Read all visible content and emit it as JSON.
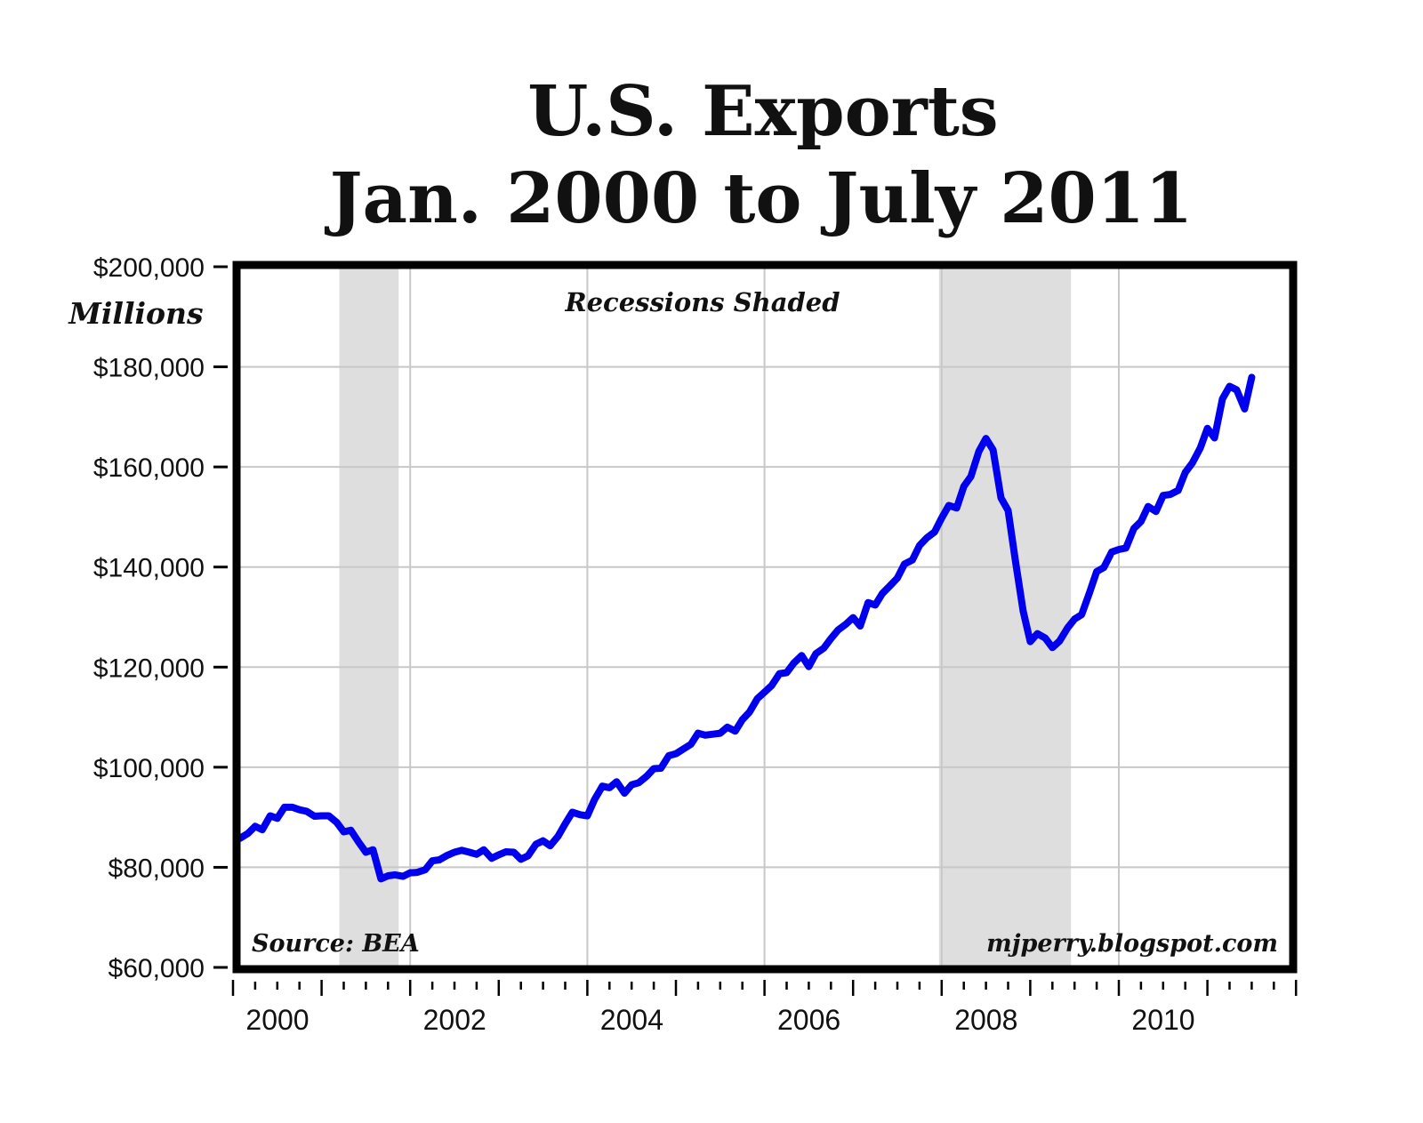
{
  "chart_data": {
    "type": "line",
    "title": "U.S. Exports",
    "subtitle": "Jan. 2000 to July 2011",
    "xlabel": "",
    "ylabel": "Millions",
    "ylim": [
      60000,
      200000
    ],
    "xlim": [
      2000.0,
      2012.0
    ],
    "grid": true,
    "legend": null,
    "y_ticks": [
      60000,
      80000,
      100000,
      120000,
      140000,
      160000,
      180000,
      200000
    ],
    "y_tick_labels": [
      "$60,000",
      "$80,000",
      "$100,000",
      "$120,000",
      "$140,000",
      "$160,000",
      "$180,000",
      "$200,000"
    ],
    "x_tick_labels": [
      "2000",
      "2002",
      "2004",
      "2006",
      "2008",
      "2010"
    ],
    "x_tick_values": [
      2000,
      2002,
      2004,
      2006,
      2008,
      2010
    ],
    "annotations": {
      "top_center": "Recessions Shaded",
      "bottom_left": "Source: BEA",
      "bottom_right": "mjperry.blogspot.com"
    },
    "recessions": [
      {
        "start": 2001.2,
        "end": 2001.87
      },
      {
        "start": 2007.97,
        "end": 2009.46
      }
    ],
    "series": [
      {
        "name": "U.S. Exports",
        "color": "#0000ee",
        "x": [
          2000.08,
          2000.17,
          2000.25,
          2000.33,
          2000.42,
          2000.5,
          2000.58,
          2000.67,
          2000.75,
          2000.83,
          2000.92,
          2001.0,
          2001.08,
          2001.17,
          2001.25,
          2001.33,
          2001.42,
          2001.5,
          2001.58,
          2001.67,
          2001.75,
          2001.83,
          2001.92,
          2002.0,
          2002.08,
          2002.17,
          2002.25,
          2002.33,
          2002.42,
          2002.5,
          2002.58,
          2002.67,
          2002.75,
          2002.83,
          2002.92,
          2003.0,
          2003.08,
          2003.17,
          2003.25,
          2003.33,
          2003.42,
          2003.5,
          2003.58,
          2003.67,
          2003.75,
          2003.83,
          2003.92,
          2004.0,
          2004.08,
          2004.17,
          2004.25,
          2004.33,
          2004.42,
          2004.5,
          2004.58,
          2004.67,
          2004.75,
          2004.83,
          2004.92,
          2005.0,
          2005.08,
          2005.17,
          2005.25,
          2005.33,
          2005.42,
          2005.5,
          2005.58,
          2005.67,
          2005.75,
          2005.83,
          2005.92,
          2006.0,
          2006.08,
          2006.17,
          2006.25,
          2006.33,
          2006.42,
          2006.5,
          2006.58,
          2006.67,
          2006.75,
          2006.83,
          2006.92,
          2007.0,
          2007.08,
          2007.17,
          2007.25,
          2007.33,
          2007.42,
          2007.5,
          2007.58,
          2007.67,
          2007.75,
          2007.83,
          2007.92,
          2008.0,
          2008.08,
          2008.17,
          2008.25,
          2008.33,
          2008.42,
          2008.5,
          2008.58,
          2008.67,
          2008.75,
          2008.83,
          2008.92,
          2009.0,
          2009.08,
          2009.17,
          2009.25,
          2009.33,
          2009.42,
          2009.5,
          2009.58,
          2009.67,
          2009.75,
          2009.83,
          2009.92,
          2010.0,
          2010.08,
          2010.17,
          2010.25,
          2010.33,
          2010.42,
          2010.5,
          2010.58,
          2010.67,
          2010.75,
          2010.83,
          2010.92,
          2011.0,
          2011.08,
          2011.17,
          2011.25,
          2011.33,
          2011.42,
          2011.5
        ],
        "values": [
          85800,
          86800,
          88200,
          87500,
          90300,
          89800,
          92000,
          92000,
          91500,
          91200,
          90200,
          90300,
          90300,
          89000,
          87100,
          87400,
          85000,
          83000,
          83500,
          77700,
          78300,
          78500,
          78200,
          78900,
          79000,
          79500,
          81300,
          81500,
          82400,
          83000,
          83400,
          83000,
          82600,
          83500,
          81800,
          82500,
          83100,
          83000,
          81600,
          82300,
          84600,
          85300,
          84300,
          86200,
          88700,
          91000,
          90500,
          90300,
          93500,
          96200,
          95900,
          97100,
          94800,
          96500,
          96900,
          98200,
          99700,
          99800,
          102300,
          102700,
          103600,
          104600,
          106800,
          106400,
          106600,
          106800,
          108000,
          107200,
          109500,
          111000,
          113700,
          115000,
          116300,
          118700,
          118900,
          120800,
          122300,
          120100,
          122700,
          123800,
          125700,
          127400,
          128600,
          129900,
          128200,
          132900,
          132400,
          134700,
          136300,
          137800,
          140600,
          141400,
          144300,
          145800,
          147000,
          149800,
          152300,
          151800,
          156100,
          158100,
          163100,
          165700,
          163400,
          153800,
          151300,
          141500,
          131200,
          125100,
          126700,
          125800,
          123900,
          125200,
          127800,
          129600,
          130500,
          134900,
          139100,
          139900,
          143000,
          143500,
          143800,
          147700,
          149100,
          152100,
          151100,
          154300,
          154500,
          155300,
          158900,
          160800,
          163800,
          167700,
          165800,
          173600,
          176100,
          175400,
          171600,
          177900
        ]
      }
    ]
  }
}
